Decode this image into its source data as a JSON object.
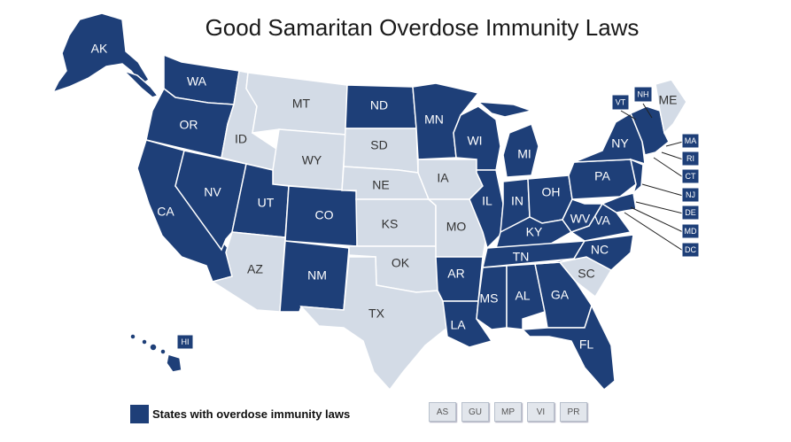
{
  "title": "Good Samaritan Overdose Immunity Laws",
  "legend": {
    "label": "States with overdose immunity laws",
    "color": "#1e3f78"
  },
  "colors": {
    "with_law": "#1e3f78",
    "without_law": "#d3dbe6"
  },
  "states_without_law": [
    "MT",
    "ID",
    "WY",
    "SD",
    "NE",
    "IA",
    "KS",
    "MO",
    "OK",
    "TX",
    "AZ",
    "SC",
    "ME"
  ],
  "states_with_law": [
    "AK",
    "WA",
    "OR",
    "CA",
    "NV",
    "UT",
    "CO",
    "NM",
    "ND",
    "MN",
    "WI",
    "MI",
    "IL",
    "IN",
    "OH",
    "KY",
    "TN",
    "AR",
    "LA",
    "MS",
    "AL",
    "GA",
    "FL",
    "NC",
    "VA",
    "WV",
    "PA",
    "NY",
    "VT",
    "NH",
    "MA",
    "RI",
    "CT",
    "NJ",
    "DE",
    "MD",
    "DC",
    "HI"
  ],
  "small_state_boxes": [
    "VT",
    "NH",
    "MA",
    "RI",
    "CT",
    "NJ",
    "DE",
    "MD",
    "DC",
    "HI"
  ],
  "territories": [
    "AS",
    "GU",
    "MP",
    "VI",
    "PR"
  ]
}
